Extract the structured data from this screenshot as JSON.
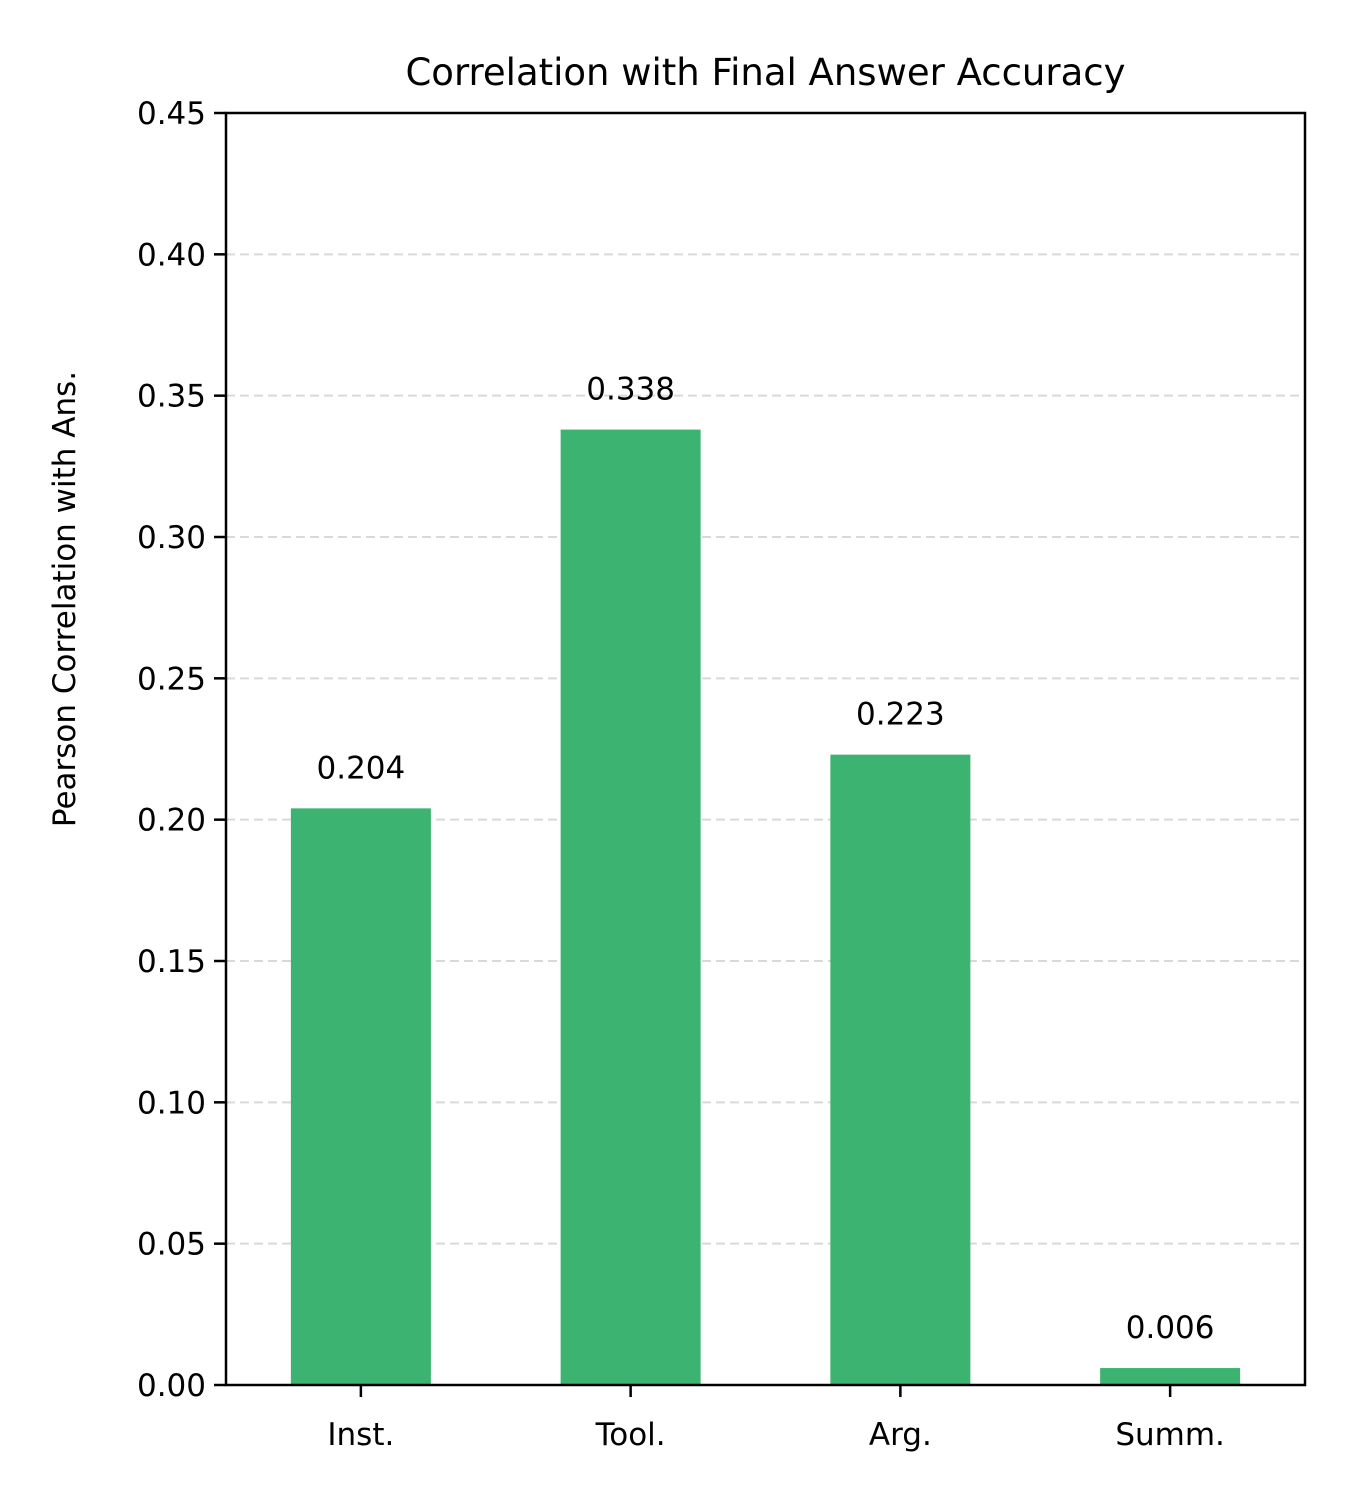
{
  "chart_data": {
    "type": "bar",
    "title": "Correlation with Final Answer Accuracy",
    "xlabel": "",
    "ylabel": "Pearson Correlation with Ans.",
    "categories": [
      "Inst.",
      "Tool.",
      "Arg.",
      "Summ."
    ],
    "values": [
      0.204,
      0.338,
      0.223,
      0.006
    ],
    "value_labels": [
      "0.204",
      "0.338",
      "0.223",
      "0.006"
    ],
    "ylim": [
      0,
      0.45
    ],
    "yticks": [
      0.0,
      0.05,
      0.1,
      0.15,
      0.2,
      0.25,
      0.3,
      0.35,
      0.4,
      0.45
    ],
    "ytick_labels": [
      "0.00",
      "0.05",
      "0.10",
      "0.15",
      "0.20",
      "0.25",
      "0.30",
      "0.35",
      "0.40",
      "0.45"
    ],
    "grid": "horizontal dashed",
    "bar_color": "#3cb371",
    "grid_color": "#d9d9d9"
  }
}
